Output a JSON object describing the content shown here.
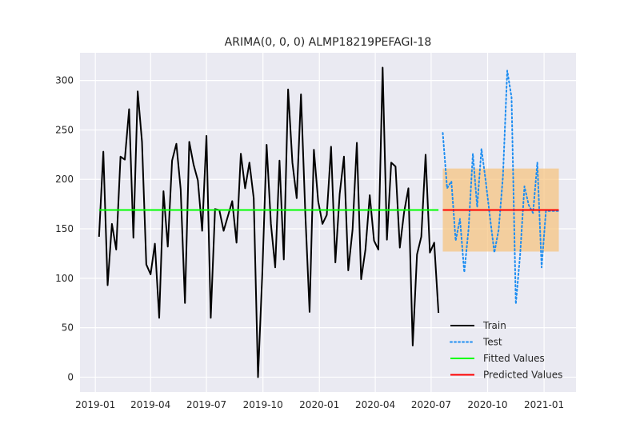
{
  "chart_data": {
    "type": "line",
    "title": "ARIMA(0, 0, 0) ALMP18219PEFAGI-18",
    "xlabel": "",
    "ylabel": "",
    "xlim": [
      "2018-12-07",
      "2021-02-22"
    ],
    "ylim": [
      -15,
      328
    ],
    "x_ticks": [
      "2019-01-01",
      "2019-04-01",
      "2019-07-01",
      "2019-10-01",
      "2020-01-01",
      "2020-04-01",
      "2020-07-01",
      "2020-10-01",
      "2021-01-01"
    ],
    "x_tick_labels": [
      "2019-01",
      "2019-04",
      "2019-07",
      "2019-10",
      "2020-01",
      "2020-04",
      "2020-07",
      "2020-10",
      "2021-01"
    ],
    "y_ticks": [
      0,
      50,
      100,
      150,
      200,
      250,
      300
    ],
    "y_tick_labels": [
      "0",
      "50",
      "100",
      "150",
      "200",
      "250",
      "300"
    ],
    "grid": true,
    "legend_position": "lower-right",
    "background_color": "#eaeaf2",
    "series": [
      {
        "name": "Train",
        "style": "solid",
        "color": "#000000",
        "x": [
          "2019-01-07",
          "2019-01-14",
          "2019-01-21",
          "2019-01-28",
          "2019-02-04",
          "2019-02-11",
          "2019-02-18",
          "2019-02-25",
          "2019-03-04",
          "2019-03-11",
          "2019-03-18",
          "2019-03-25",
          "2019-04-01",
          "2019-04-08",
          "2019-04-15",
          "2019-04-22",
          "2019-04-29",
          "2019-05-06",
          "2019-05-13",
          "2019-05-20",
          "2019-05-27",
          "2019-06-03",
          "2019-06-10",
          "2019-06-17",
          "2019-06-24",
          "2019-07-01",
          "2019-07-08",
          "2019-07-15",
          "2019-07-22",
          "2019-07-29",
          "2019-08-05",
          "2019-08-12",
          "2019-08-19",
          "2019-08-26",
          "2019-09-02",
          "2019-09-09",
          "2019-09-16",
          "2019-09-23",
          "2019-09-30",
          "2019-10-07",
          "2019-10-14",
          "2019-10-21",
          "2019-10-28",
          "2019-11-04",
          "2019-11-11",
          "2019-11-18",
          "2019-11-25",
          "2019-12-02",
          "2019-12-09",
          "2019-12-16",
          "2019-12-23",
          "2019-12-30",
          "2020-01-06",
          "2020-01-13",
          "2020-01-20",
          "2020-01-27",
          "2020-02-03",
          "2020-02-10",
          "2020-02-17",
          "2020-02-24",
          "2020-03-02",
          "2020-03-09",
          "2020-03-16",
          "2020-03-23",
          "2020-03-30",
          "2020-04-06",
          "2020-04-13",
          "2020-04-20",
          "2020-04-27",
          "2020-05-04",
          "2020-05-11",
          "2020-05-18",
          "2020-05-25",
          "2020-06-01",
          "2020-06-08",
          "2020-06-15",
          "2020-06-22",
          "2020-06-29",
          "2020-07-06",
          "2020-07-13"
        ],
        "values": [
          142,
          228,
          93,
          155,
          129,
          223,
          220,
          271,
          141,
          289,
          238,
          114,
          104,
          135,
          60,
          188,
          132,
          219,
          236,
          190,
          75,
          238,
          215,
          199,
          148,
          244,
          60,
          170,
          169,
          148,
          163,
          178,
          136,
          226,
          191,
          217,
          181,
          0,
          105,
          235,
          155,
          111,
          219,
          119,
          291,
          217,
          181,
          286,
          166,
          66,
          230,
          178,
          155,
          164,
          233,
          116,
          185,
          223,
          108,
          149,
          237,
          99,
          129,
          184,
          138,
          129,
          313,
          139,
          217,
          213,
          131,
          167,
          191,
          32,
          124,
          142,
          225,
          126,
          136,
          65
        ]
      },
      {
        "name": "Test",
        "style": "dotted",
        "color": "#1f8ef1",
        "x": [
          "2020-07-20",
          "2020-07-27",
          "2020-08-03",
          "2020-08-10",
          "2020-08-17",
          "2020-08-24",
          "2020-08-31",
          "2020-09-07",
          "2020-09-14",
          "2020-09-21",
          "2020-09-28",
          "2020-10-05",
          "2020-10-12",
          "2020-10-19",
          "2020-10-26",
          "2020-11-02",
          "2020-11-09",
          "2020-11-16",
          "2020-11-23",
          "2020-11-30",
          "2020-12-07",
          "2020-12-14",
          "2020-12-21",
          "2020-12-28",
          "2021-01-04",
          "2021-01-11",
          "2021-01-18",
          "2021-01-25"
        ],
        "values": [
          247,
          191,
          198,
          138,
          160,
          106,
          150,
          226,
          172,
          231,
          198,
          161,
          126,
          149,
          203,
          310,
          283,
          74,
          124,
          193,
          174,
          166,
          217,
          111,
          168,
          168,
          168,
          168
        ]
      },
      {
        "name": "Fitted Values",
        "style": "solid",
        "color": "#00ff00",
        "x": [
          "2019-01-07",
          "2020-07-13"
        ],
        "values": [
          169,
          169
        ]
      },
      {
        "name": "Predicted Values",
        "style": "solid",
        "color": "#ff0000",
        "x": [
          "2020-07-20",
          "2021-01-25"
        ],
        "values": [
          169,
          169
        ]
      }
    ],
    "confidence_band": {
      "color": "#f7c27a",
      "x": [
        "2020-07-20",
        "2021-01-25"
      ],
      "lower": 127,
      "upper": 211
    }
  }
}
